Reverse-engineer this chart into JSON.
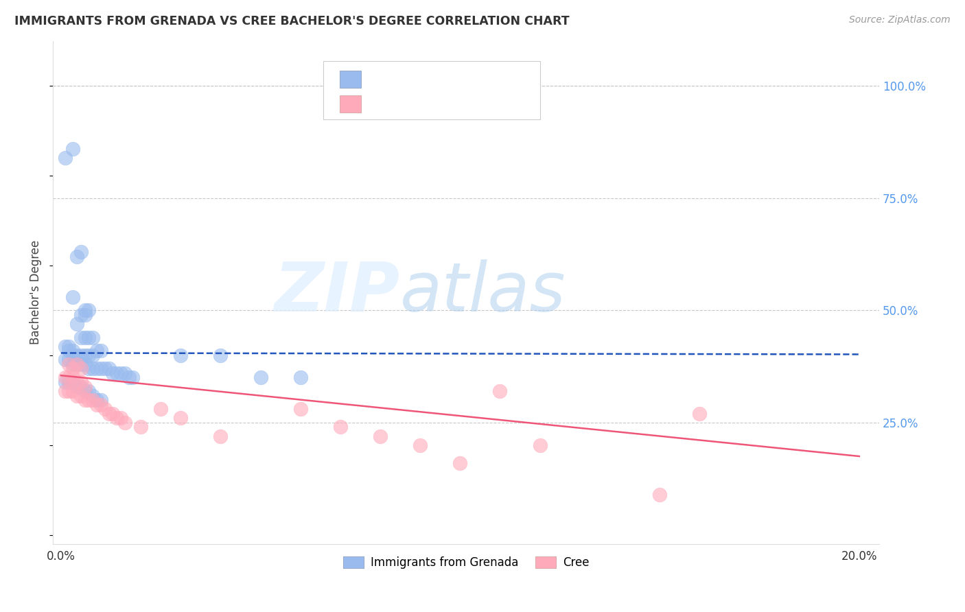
{
  "title": "IMMIGRANTS FROM GRENADA VS CREE BACHELOR'S DEGREE CORRELATION CHART",
  "source": "Source: ZipAtlas.com",
  "ylabel": "Bachelor's Degree",
  "ytick_labels": [
    "100.0%",
    "75.0%",
    "50.0%",
    "25.0%"
  ],
  "ytick_positions": [
    1.0,
    0.75,
    0.5,
    0.25
  ],
  "legend_blue_label": "Immigrants from Grenada",
  "legend_pink_label": "Cree",
  "background_color": "#ffffff",
  "grid_color": "#c8c8c8",
  "blue_color": "#99bbee",
  "pink_color": "#ffaabb",
  "blue_line_color": "#2255bb",
  "pink_line_color": "#ee5577",
  "blue_scatter": [
    [
      0.001,
      0.84
    ],
    [
      0.003,
      0.86
    ],
    [
      0.004,
      0.62
    ],
    [
      0.005,
      0.63
    ],
    [
      0.003,
      0.53
    ],
    [
      0.004,
      0.47
    ],
    [
      0.005,
      0.49
    ],
    [
      0.006,
      0.49
    ],
    [
      0.006,
      0.5
    ],
    [
      0.007,
      0.5
    ],
    [
      0.005,
      0.44
    ],
    [
      0.006,
      0.44
    ],
    [
      0.007,
      0.44
    ],
    [
      0.008,
      0.44
    ],
    [
      0.001,
      0.42
    ],
    [
      0.002,
      0.42
    ],
    [
      0.002,
      0.41
    ],
    [
      0.003,
      0.41
    ],
    [
      0.003,
      0.4
    ],
    [
      0.004,
      0.4
    ],
    [
      0.005,
      0.4
    ],
    [
      0.006,
      0.4
    ],
    [
      0.007,
      0.4
    ],
    [
      0.008,
      0.4
    ],
    [
      0.009,
      0.41
    ],
    [
      0.01,
      0.41
    ],
    [
      0.001,
      0.39
    ],
    [
      0.002,
      0.39
    ],
    [
      0.003,
      0.38
    ],
    [
      0.004,
      0.38
    ],
    [
      0.005,
      0.38
    ],
    [
      0.006,
      0.38
    ],
    [
      0.007,
      0.37
    ],
    [
      0.008,
      0.37
    ],
    [
      0.009,
      0.37
    ],
    [
      0.01,
      0.37
    ],
    [
      0.011,
      0.37
    ],
    [
      0.012,
      0.37
    ],
    [
      0.013,
      0.36
    ],
    [
      0.014,
      0.36
    ],
    [
      0.015,
      0.36
    ],
    [
      0.016,
      0.36
    ],
    [
      0.017,
      0.35
    ],
    [
      0.018,
      0.35
    ],
    [
      0.001,
      0.34
    ],
    [
      0.002,
      0.34
    ],
    [
      0.003,
      0.34
    ],
    [
      0.004,
      0.33
    ],
    [
      0.005,
      0.33
    ],
    [
      0.006,
      0.32
    ],
    [
      0.007,
      0.32
    ],
    [
      0.008,
      0.31
    ],
    [
      0.009,
      0.3
    ],
    [
      0.01,
      0.3
    ],
    [
      0.03,
      0.4
    ],
    [
      0.04,
      0.4
    ],
    [
      0.05,
      0.35
    ],
    [
      0.06,
      0.35
    ]
  ],
  "pink_scatter": [
    [
      0.002,
      0.38
    ],
    [
      0.003,
      0.37
    ],
    [
      0.004,
      0.38
    ],
    [
      0.005,
      0.37
    ],
    [
      0.001,
      0.35
    ],
    [
      0.002,
      0.35
    ],
    [
      0.003,
      0.35
    ],
    [
      0.004,
      0.34
    ],
    [
      0.005,
      0.34
    ],
    [
      0.006,
      0.33
    ],
    [
      0.001,
      0.32
    ],
    [
      0.002,
      0.32
    ],
    [
      0.003,
      0.32
    ],
    [
      0.004,
      0.31
    ],
    [
      0.005,
      0.31
    ],
    [
      0.006,
      0.3
    ],
    [
      0.007,
      0.3
    ],
    [
      0.008,
      0.3
    ],
    [
      0.009,
      0.29
    ],
    [
      0.01,
      0.29
    ],
    [
      0.011,
      0.28
    ],
    [
      0.012,
      0.27
    ],
    [
      0.013,
      0.27
    ],
    [
      0.014,
      0.26
    ],
    [
      0.015,
      0.26
    ],
    [
      0.016,
      0.25
    ],
    [
      0.02,
      0.24
    ],
    [
      0.025,
      0.28
    ],
    [
      0.03,
      0.26
    ],
    [
      0.04,
      0.22
    ],
    [
      0.06,
      0.28
    ],
    [
      0.07,
      0.24
    ],
    [
      0.08,
      0.22
    ],
    [
      0.09,
      0.2
    ],
    [
      0.1,
      0.16
    ],
    [
      0.11,
      0.32
    ],
    [
      0.12,
      0.2
    ],
    [
      0.15,
      0.09
    ],
    [
      0.16,
      0.27
    ]
  ],
  "blue_trend_x": [
    0.0,
    0.2
  ],
  "blue_trend_y": [
    0.405,
    0.402
  ],
  "pink_trend_x": [
    0.0,
    0.2
  ],
  "pink_trend_y": [
    0.355,
    0.175
  ],
  "xlim": [
    -0.002,
    0.205
  ],
  "ylim": [
    -0.02,
    1.1
  ],
  "xticks": [
    0.0,
    0.2
  ],
  "xtick_labels": [
    "0.0%",
    "20.0%"
  ]
}
